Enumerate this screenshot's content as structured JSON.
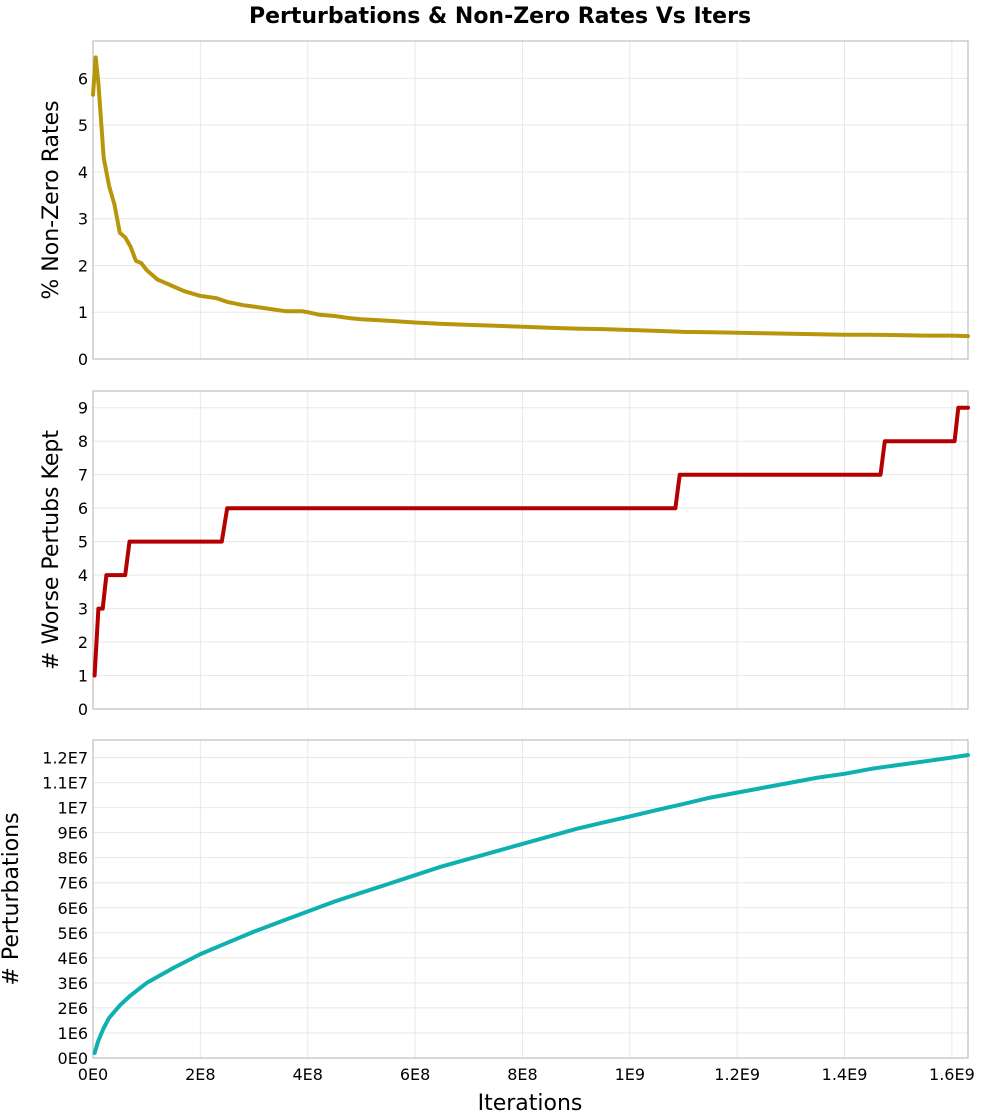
{
  "chart_data": {
    "type": "line",
    "title": "Perturbations & Non-Zero Rates Vs Iters",
    "shared_x": {
      "label": "Iterations",
      "range": [
        0,
        1630000000
      ],
      "ticks": [
        0,
        200000000,
        400000000,
        600000000,
        800000000,
        1000000000,
        1200000000,
        1400000000,
        1600000000
      ],
      "tick_labels": [
        "0E0",
        "2E8",
        "4E8",
        "6E8",
        "8E8",
        "1E9",
        "1.2E9",
        "1.4E9",
        "1.6E9"
      ]
    },
    "grid": true,
    "panels": [
      {
        "ylabel": "% Non-Zero Rates",
        "ylim": [
          0,
          6.8
        ],
        "yticks": [
          0,
          1,
          2,
          3,
          4,
          5,
          6
        ],
        "ytick_labels": [
          "0",
          "1",
          "2",
          "3",
          "4",
          "5",
          "6"
        ],
        "color": "#b8960c",
        "step": false,
        "points": [
          [
            0,
            5.65
          ],
          [
            5000000,
            6.45
          ],
          [
            10000000,
            5.9
          ],
          [
            20000000,
            4.3
          ],
          [
            30000000,
            3.7
          ],
          [
            40000000,
            3.3
          ],
          [
            50000000,
            2.7
          ],
          [
            60000000,
            2.6
          ],
          [
            70000000,
            2.4
          ],
          [
            80000000,
            2.1
          ],
          [
            90000000,
            2.05
          ],
          [
            100000000,
            1.9
          ],
          [
            110000000,
            1.8
          ],
          [
            120000000,
            1.7
          ],
          [
            130000000,
            1.65
          ],
          [
            150000000,
            1.55
          ],
          [
            170000000,
            1.45
          ],
          [
            200000000,
            1.35
          ],
          [
            230000000,
            1.3
          ],
          [
            250000000,
            1.22
          ],
          [
            280000000,
            1.15
          ],
          [
            300000000,
            1.12
          ],
          [
            330000000,
            1.07
          ],
          [
            360000000,
            1.02
          ],
          [
            390000000,
            1.02
          ],
          [
            400000000,
            1.0
          ],
          [
            420000000,
            0.95
          ],
          [
            450000000,
            0.92
          ],
          [
            480000000,
            0.87
          ],
          [
            500000000,
            0.85
          ],
          [
            550000000,
            0.82
          ],
          [
            600000000,
            0.78
          ],
          [
            650000000,
            0.75
          ],
          [
            700000000,
            0.73
          ],
          [
            750000000,
            0.71
          ],
          [
            800000000,
            0.69
          ],
          [
            850000000,
            0.67
          ],
          [
            900000000,
            0.65
          ],
          [
            950000000,
            0.64
          ],
          [
            1000000000,
            0.62
          ],
          [
            1050000000,
            0.6
          ],
          [
            1100000000,
            0.58
          ],
          [
            1150000000,
            0.57
          ],
          [
            1200000000,
            0.56
          ],
          [
            1250000000,
            0.55
          ],
          [
            1300000000,
            0.54
          ],
          [
            1350000000,
            0.53
          ],
          [
            1400000000,
            0.52
          ],
          [
            1450000000,
            0.52
          ],
          [
            1500000000,
            0.51
          ],
          [
            1550000000,
            0.5
          ],
          [
            1600000000,
            0.5
          ],
          [
            1630000000,
            0.49
          ]
        ]
      },
      {
        "ylabel": "# Worse Pertubs Kept",
        "ylim": [
          0,
          9.5
        ],
        "yticks": [
          0,
          1,
          2,
          3,
          4,
          5,
          6,
          7,
          8,
          9
        ],
        "ytick_labels": [
          "0",
          "1",
          "2",
          "3",
          "4",
          "5",
          "6",
          "7",
          "8",
          "9"
        ],
        "color": "#b40000",
        "step": false,
        "points": [
          [
            3000000,
            1
          ],
          [
            10000000,
            3
          ],
          [
            18000000,
            3
          ],
          [
            25000000,
            4
          ],
          [
            60000000,
            4
          ],
          [
            68000000,
            5
          ],
          [
            240000000,
            5
          ],
          [
            250000000,
            6
          ],
          [
            1085000000,
            6
          ],
          [
            1093000000,
            7
          ],
          [
            1467000000,
            7
          ],
          [
            1475000000,
            8
          ],
          [
            1605000000,
            8
          ],
          [
            1612000000,
            9
          ],
          [
            1630000000,
            9
          ]
        ]
      },
      {
        "ylabel": "# Perturbations",
        "ylim": [
          0,
          12700000
        ],
        "yticks": [
          0,
          1000000,
          2000000,
          3000000,
          4000000,
          5000000,
          6000000,
          7000000,
          8000000,
          9000000,
          10000000,
          11000000,
          12000000
        ],
        "ytick_labels": [
          "0E0",
          "1E6",
          "2E6",
          "3E6",
          "4E6",
          "5E6",
          "6E6",
          "7E6",
          "8E6",
          "9E6",
          "1E7",
          "1.1E7",
          "1.2E7"
        ],
        "color": "#0fb0b0",
        "step": false,
        "points": [
          [
            3000000,
            200000
          ],
          [
            10000000,
            700000
          ],
          [
            20000000,
            1200000
          ],
          [
            30000000,
            1600000
          ],
          [
            50000000,
            2100000
          ],
          [
            70000000,
            2500000
          ],
          [
            100000000,
            3000000
          ],
          [
            150000000,
            3600000
          ],
          [
            200000000,
            4150000
          ],
          [
            250000000,
            4600000
          ],
          [
            300000000,
            5050000
          ],
          [
            350000000,
            5450000
          ],
          [
            400000000,
            5850000
          ],
          [
            450000000,
            6250000
          ],
          [
            500000000,
            6600000
          ],
          [
            550000000,
            6950000
          ],
          [
            600000000,
            7300000
          ],
          [
            650000000,
            7650000
          ],
          [
            700000000,
            7950000
          ],
          [
            750000000,
            8250000
          ],
          [
            800000000,
            8550000
          ],
          [
            850000000,
            8850000
          ],
          [
            900000000,
            9150000
          ],
          [
            950000000,
            9400000
          ],
          [
            1000000000,
            9650000
          ],
          [
            1050000000,
            9900000
          ],
          [
            1100000000,
            10150000
          ],
          [
            1150000000,
            10400000
          ],
          [
            1200000000,
            10600000
          ],
          [
            1250000000,
            10800000
          ],
          [
            1300000000,
            11000000
          ],
          [
            1350000000,
            11200000
          ],
          [
            1400000000,
            11350000
          ],
          [
            1450000000,
            11550000
          ],
          [
            1500000000,
            11700000
          ],
          [
            1550000000,
            11850000
          ],
          [
            1600000000,
            12000000
          ],
          [
            1630000000,
            12100000
          ]
        ]
      }
    ]
  }
}
